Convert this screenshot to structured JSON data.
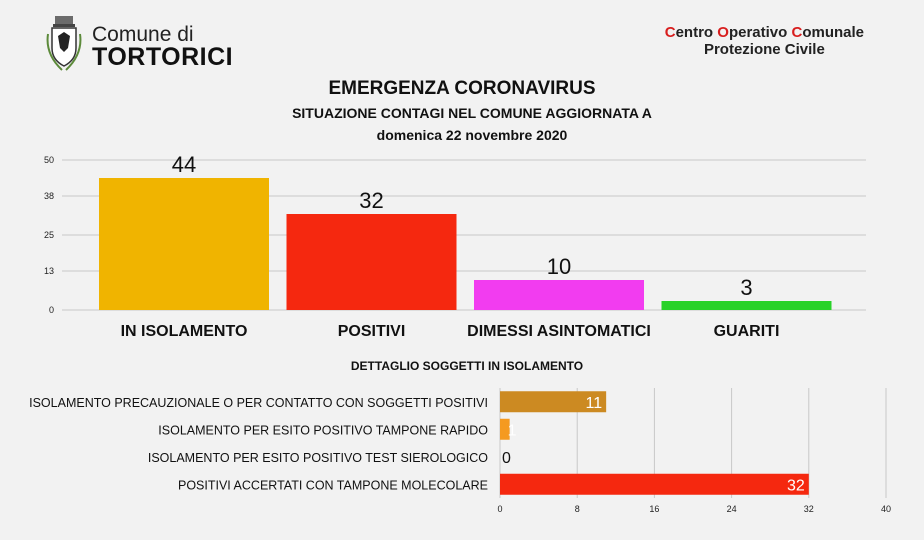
{
  "header": {
    "org_line1": "Comune di",
    "org_line2": "TORTORICI",
    "coc_line1_parts": [
      "C",
      "entro ",
      "O",
      "perativo ",
      "C",
      "omunale"
    ],
    "coc_line2": "Protezione Civile",
    "logo_icon": "coat-of-arms-icon"
  },
  "titles": {
    "main": "EMERGENZA CORONAVIRUS",
    "subtitle": "SITUAZIONE CONTAGI NEL COMUNE AGGIORNATA A",
    "date": "domenica 22 novembre 2020",
    "detail": "DETTAGLIO SOGGETTI IN ISOLAMENTO"
  },
  "colors": {
    "accent_red": "#d81e1e",
    "isolamento": "#f0b400",
    "positivi": "#f5280f",
    "dimessi": "#f23cf0",
    "guariti": "#28d228",
    "detail_brown": "#cc8a22",
    "detail_orange": "#f59a20",
    "detail_red": "#f5280f"
  },
  "chart_data": [
    {
      "type": "bar",
      "orientation": "vertical",
      "categories": [
        "IN ISOLAMENTO",
        "POSITIVI",
        "DIMESSI ASINTOMATICI",
        "GUARITI"
      ],
      "values": [
        44,
        32,
        10,
        3
      ],
      "yticks": [
        "0",
        "13",
        "25",
        "38",
        "50"
      ],
      "ylim": [
        0,
        50
      ],
      "grid": true
    },
    {
      "type": "bar",
      "orientation": "horizontal",
      "categories": [
        "ISOLAMENTO PRECAUZIONALE O PER CONTATTO CON SOGGETTI POSITIVI",
        "ISOLAMENTO PER ESITO POSITIVO TAMPONE RAPIDO",
        "ISOLAMENTO PER ESITO POSITIVO TEST SIEROLOGICO",
        "POSITIVI ACCERTATI CON TAMPONE MOLECOLARE"
      ],
      "values": [
        11,
        1,
        0,
        32
      ],
      "xticks": [
        "0",
        "8",
        "16",
        "24",
        "32",
        "40"
      ],
      "xlim": [
        0,
        40
      ],
      "grid": true
    }
  ]
}
